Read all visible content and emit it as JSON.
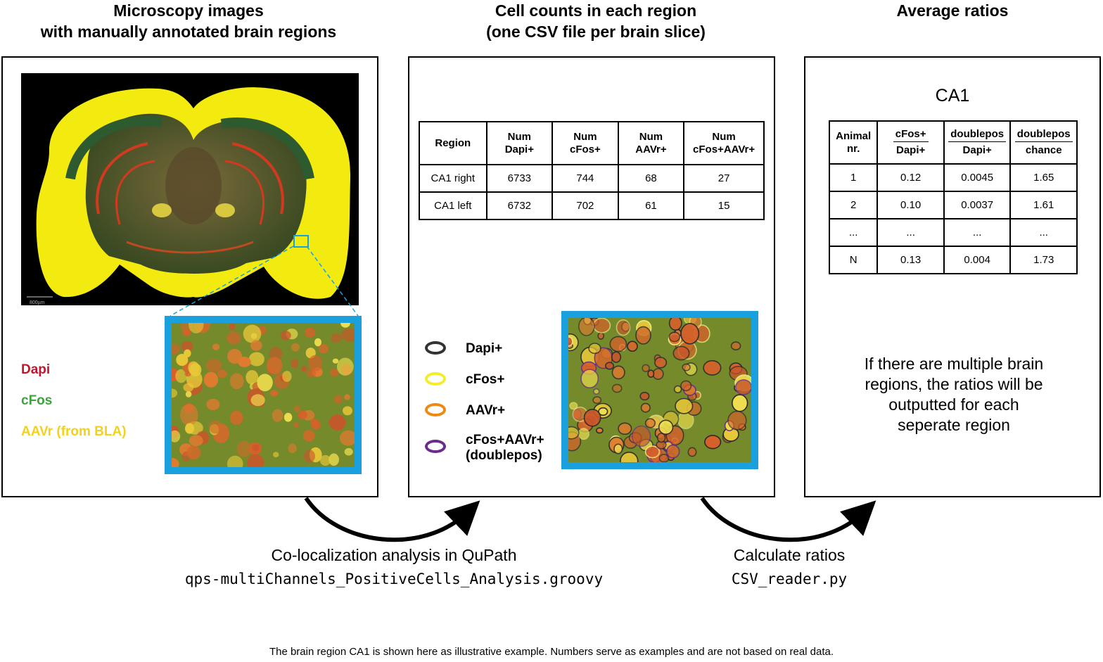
{
  "titles": {
    "col1_line1": "Microscopy images",
    "col1_line2": "with manually annotated brain regions",
    "col2_line1": "Cell counts in each region",
    "col2_line2": "(one CSV file per brain slice)",
    "col3_line1": "Average ratios"
  },
  "panel1": {
    "scale_bar": "800µm",
    "legend": [
      {
        "label": "Dapi",
        "color": "#c0162d"
      },
      {
        "label": "cFos",
        "color": "#3aa53a"
      },
      {
        "label": "AAVr (from BLA)",
        "color": "#f2d21c"
      }
    ]
  },
  "panel2": {
    "headers": [
      {
        "l1": "Region",
        "l2": ""
      },
      {
        "l1": "Num",
        "l2": "Dapi+"
      },
      {
        "l1": "Num",
        "l2": "cFos+"
      },
      {
        "l1": "Num",
        "l2": "AAVr+"
      },
      {
        "l1": "Num",
        "l2": "cFos+AAVr+"
      }
    ],
    "rows": [
      [
        "CA1 right",
        "6733",
        "744",
        "68",
        "27"
      ],
      [
        "CA1 left",
        "6732",
        "702",
        "61",
        "15"
      ]
    ],
    "legend": [
      {
        "label": "Dapi+",
        "label2": "",
        "color": "#333333"
      },
      {
        "label": "cFos+",
        "label2": "",
        "color": "#f2ee2a"
      },
      {
        "label": "AAVr+",
        "label2": "",
        "color": "#ee8a14"
      },
      {
        "label": "cFos+AAVr+",
        "label2": "(doublepos)",
        "color": "#6a2d8c"
      }
    ]
  },
  "panel3": {
    "region": "CA1",
    "headers": {
      "animal_l1": "Animal",
      "animal_l2": "nr.",
      "c2_num": "cFos+",
      "c2_den": "Dapi+",
      "c3_num": "doublepos",
      "c3_den": "Dapi+",
      "c4_num": "doublepos",
      "c4_den": "chance"
    },
    "rows": [
      [
        "1",
        "0.12",
        "0.0045",
        "1.65"
      ],
      [
        "2",
        "0.10",
        "0.0037",
        "1.61"
      ],
      [
        "...",
        "...",
        "...",
        "..."
      ],
      [
        "N",
        "0.13",
        "0.004",
        "1.73"
      ]
    ],
    "note_lines": [
      "If there are multiple brain",
      "regions, the ratios will be",
      "outputted for each",
      "seperate region"
    ]
  },
  "steps": {
    "step1_label": "Co-localization analysis in QuPath",
    "step1_script": "qps-multiChannels_PositiveCells_Analysis.groovy",
    "step2_label": "Calculate ratios",
    "step2_script": "CSV_reader.py"
  },
  "footnote": "The brain region CA1 is shown here as illustrative example. Numbers serve as examples and are not based on real data."
}
